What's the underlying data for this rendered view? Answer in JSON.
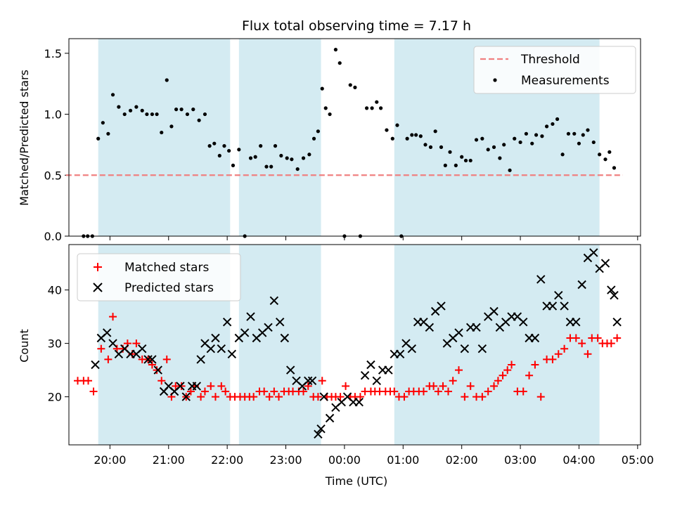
{
  "title": "Flux total observing time = 7.17 h",
  "colors": {
    "shade": "#add8e6",
    "threshold": "#f08080",
    "measurement": "#000000",
    "matched": "#ff0000",
    "predicted": "#000000"
  },
  "chart_data": [
    {
      "type": "scatter",
      "title": "Flux total observing time = 7.17 h",
      "xlabel": "",
      "ylabel": "Matched/Predicted stars",
      "ylim": [
        0,
        1.62
      ],
      "yticks": [
        "0.0",
        "0.5",
        "1.0",
        "1.5"
      ],
      "legend": {
        "placement": "top-right",
        "entries": [
          "Threshold",
          "Measurements"
        ]
      },
      "shaded_intervals_utc_h": [
        [
          19.8,
          22.05
        ],
        [
          22.2,
          23.6
        ],
        [
          24.85,
          28.35
        ]
      ],
      "threshold": {
        "name": "Threshold",
        "y": 0.5,
        "x_range_utc_h": [
          19.25,
          28.75
        ]
      },
      "series": [
        {
          "name": "Measurements",
          "x_utc_h": [
            19.55,
            19.62,
            19.7,
            19.8,
            19.88,
            19.97,
            20.05,
            20.15,
            20.25,
            20.35,
            20.45,
            20.55,
            20.63,
            20.72,
            20.8,
            20.88,
            20.97,
            21.05,
            21.13,
            21.22,
            21.32,
            21.42,
            21.52,
            21.62,
            21.7,
            21.78,
            21.87,
            21.95,
            22.03,
            22.1,
            22.2,
            22.3,
            22.4,
            22.48,
            22.57,
            22.67,
            22.75,
            22.82,
            22.92,
            23.02,
            23.1,
            23.2,
            23.3,
            23.4,
            23.48,
            23.55,
            23.62,
            23.68,
            23.75,
            23.85,
            23.92,
            24.0,
            24.1,
            24.18,
            24.27,
            24.38,
            24.47,
            24.55,
            24.62,
            24.72,
            24.82,
            24.9,
            24.97,
            25.07,
            25.15,
            25.22,
            25.3,
            25.38,
            25.47,
            25.55,
            25.65,
            25.72,
            25.8,
            25.9,
            26.0,
            26.07,
            26.15,
            26.25,
            26.35,
            26.45,
            26.55,
            26.65,
            26.72,
            26.82,
            26.9,
            27.0,
            27.1,
            27.2,
            27.27,
            27.37,
            27.45,
            27.55,
            27.63,
            27.72,
            27.82,
            27.92,
            28.0,
            28.07,
            28.15,
            28.25,
            28.35,
            28.45,
            28.52,
            28.6
          ],
          "y": [
            0.0,
            0.0,
            0.0,
            0.8,
            0.93,
            0.84,
            1.16,
            1.06,
            1.0,
            1.03,
            1.06,
            1.03,
            1.0,
            1.0,
            1.0,
            0.85,
            1.28,
            0.9,
            1.04,
            1.04,
            1.0,
            1.04,
            0.95,
            1.0,
            0.74,
            0.76,
            0.66,
            0.74,
            0.7,
            0.58,
            0.71,
            0.0,
            0.64,
            0.65,
            0.74,
            0.57,
            0.57,
            0.74,
            0.66,
            0.64,
            0.63,
            0.55,
            0.64,
            0.67,
            0.8,
            0.86,
            1.21,
            1.05,
            1.0,
            1.53,
            1.42,
            0.0,
            1.24,
            1.22,
            0.0,
            1.05,
            1.05,
            1.1,
            1.05,
            0.87,
            0.8,
            0.91,
            0.0,
            0.8,
            0.83,
            0.83,
            0.82,
            0.75,
            0.73,
            0.86,
            0.73,
            0.58,
            0.69,
            0.58,
            0.65,
            0.62,
            0.62,
            0.79,
            0.8,
            0.71,
            0.73,
            0.64,
            0.75,
            0.54,
            0.8,
            0.77,
            0.84,
            0.76,
            0.83,
            0.82,
            0.9,
            0.92,
            0.96,
            0.67,
            0.84,
            0.84,
            0.76,
            0.83,
            0.87,
            0.77,
            0.67,
            0.63,
            0.69,
            0.56
          ]
        }
      ]
    },
    {
      "type": "scatter",
      "xlabel": "Time (UTC)",
      "ylabel": "Count",
      "ylim": [
        11,
        48.5
      ],
      "yticks": [
        "20",
        "30",
        "40"
      ],
      "xlim_utc_h": [
        19.3,
        29.05
      ],
      "xticks": [
        "20:00",
        "21:00",
        "22:00",
        "23:00",
        "00:00",
        "01:00",
        "02:00",
        "03:00",
        "04:00",
        "05:00"
      ],
      "legend": {
        "placement": "top-left",
        "entries": [
          "Matched stars",
          "Predicted stars"
        ]
      },
      "shaded_intervals_utc_h": [
        [
          19.8,
          22.05
        ],
        [
          22.2,
          23.6
        ],
        [
          24.85,
          28.35
        ]
      ],
      "series": [
        {
          "name": "Matched stars",
          "marker": "plus",
          "x_utc_h": [
            19.45,
            19.55,
            19.63,
            19.72,
            19.85,
            19.97,
            20.05,
            20.12,
            20.22,
            20.3,
            20.38,
            20.45,
            20.55,
            20.65,
            20.72,
            20.8,
            20.88,
            20.97,
            21.05,
            21.12,
            21.22,
            21.3,
            21.38,
            21.45,
            21.55,
            21.62,
            21.72,
            21.8,
            21.9,
            21.97,
            22.05,
            22.13,
            22.22,
            22.3,
            22.38,
            22.45,
            22.55,
            22.63,
            22.72,
            22.8,
            22.88,
            22.97,
            23.05,
            23.12,
            23.22,
            23.3,
            23.38,
            23.47,
            23.55,
            23.62,
            23.7,
            23.78,
            23.85,
            23.93,
            24.02,
            24.1,
            24.18,
            24.27,
            24.35,
            24.45,
            24.52,
            24.6,
            24.7,
            24.78,
            24.85,
            24.93,
            25.02,
            25.1,
            25.18,
            25.27,
            25.35,
            25.45,
            25.52,
            25.6,
            25.68,
            25.77,
            25.85,
            25.95,
            26.05,
            26.15,
            26.25,
            26.35,
            26.45,
            26.55,
            26.62,
            26.7,
            26.78,
            26.85,
            26.95,
            27.05,
            27.15,
            27.25,
            27.35,
            27.45,
            27.55,
            27.65,
            27.75,
            27.85,
            27.95,
            28.05,
            28.15,
            28.22,
            28.32,
            28.4,
            28.48,
            28.55,
            28.65
          ],
          "y": [
            23,
            23,
            23,
            21,
            29,
            27,
            35,
            29,
            29,
            30,
            28,
            30,
            27,
            27,
            26,
            25,
            23,
            27,
            20,
            22,
            22,
            20,
            21,
            22,
            20,
            21,
            22,
            20,
            22,
            21,
            20,
            20,
            20,
            20,
            20,
            20,
            21,
            21,
            20,
            21,
            20,
            21,
            21,
            21,
            21,
            21,
            22,
            20,
            20,
            23,
            20,
            20,
            20,
            20,
            22,
            20,
            20,
            20,
            21,
            21,
            21,
            21,
            21,
            21,
            21,
            20,
            20,
            21,
            21,
            21,
            21,
            22,
            22,
            21,
            22,
            21,
            23,
            25,
            20,
            22,
            20,
            20,
            21,
            22,
            23,
            24,
            25,
            26,
            21,
            21,
            24,
            26,
            20,
            27,
            27,
            28,
            29,
            31,
            31,
            30,
            28,
            31,
            31,
            30,
            30,
            30,
            31
          ]
        },
        {
          "name": "Predicted stars",
          "marker": "x",
          "x_utc_h": [
            19.75,
            19.85,
            19.95,
            20.05,
            20.15,
            20.25,
            20.35,
            20.45,
            20.55,
            20.65,
            20.72,
            20.82,
            20.92,
            21.0,
            21.1,
            21.2,
            21.3,
            21.4,
            21.48,
            21.55,
            21.62,
            21.72,
            21.8,
            21.9,
            22.0,
            22.08,
            22.2,
            22.3,
            22.4,
            22.5,
            22.6,
            22.7,
            22.8,
            22.9,
            22.98,
            23.08,
            23.18,
            23.28,
            23.38,
            23.45,
            23.55,
            23.6,
            23.65,
            23.75,
            23.85,
            23.95,
            24.05,
            24.15,
            24.25,
            24.35,
            24.45,
            24.55,
            24.65,
            24.75,
            24.85,
            24.95,
            25.05,
            25.15,
            25.25,
            25.35,
            25.45,
            25.55,
            25.65,
            25.75,
            25.85,
            25.95,
            26.05,
            26.15,
            26.25,
            26.35,
            26.45,
            26.55,
            26.65,
            26.75,
            26.85,
            26.95,
            27.05,
            27.15,
            27.25,
            27.35,
            27.45,
            27.55,
            27.65,
            27.75,
            27.85,
            27.95,
            28.05,
            28.15,
            28.25,
            28.35,
            28.45,
            28.55,
            28.6,
            28.65
          ],
          "y": [
            26,
            31,
            32,
            30,
            28,
            29,
            28,
            28,
            29,
            27,
            27,
            25,
            21,
            22,
            21,
            22,
            20,
            22,
            22,
            27,
            30,
            29,
            31,
            29,
            34,
            28,
            31,
            32,
            35,
            31,
            32,
            33,
            38,
            34,
            31,
            25,
            23,
            22,
            23,
            23,
            13,
            14,
            20,
            16,
            18,
            19,
            20,
            19,
            19,
            24,
            26,
            23,
            25,
            25,
            28,
            28,
            30,
            29,
            34,
            34,
            33,
            36,
            37,
            30,
            31,
            32,
            29,
            33,
            33,
            29,
            35,
            36,
            33,
            34,
            35,
            35,
            34,
            31,
            31,
            42,
            37,
            37,
            39,
            37,
            34,
            34,
            41,
            46,
            47,
            44,
            45,
            40,
            39,
            34
          ]
        }
      ]
    }
  ]
}
